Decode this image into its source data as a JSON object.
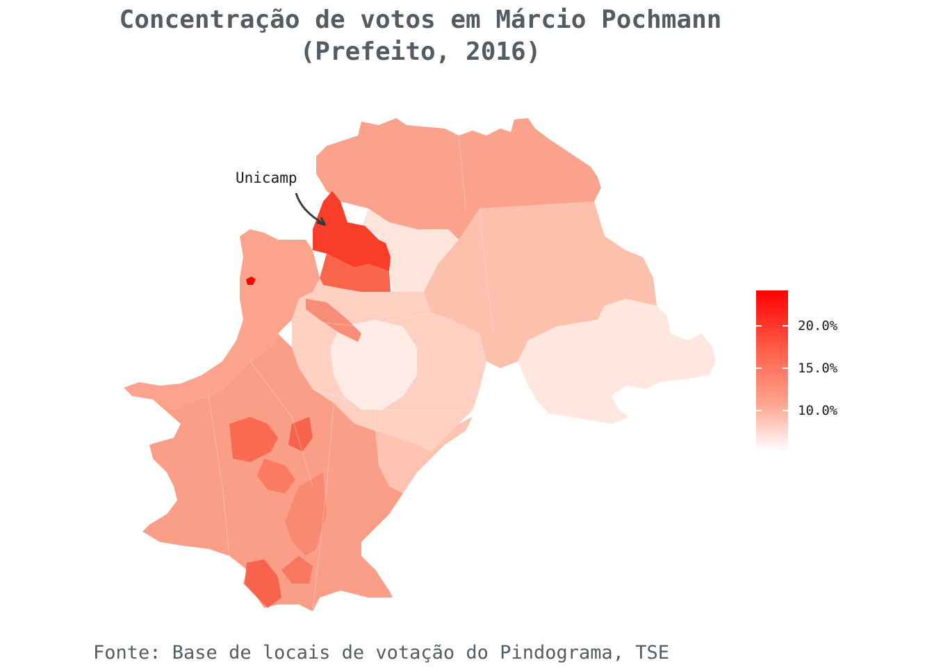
{
  "title": {
    "line1": "Concentração de votos em Márcio Pochmann",
    "line2": "(Prefeito, 2016)"
  },
  "annotation": {
    "label": "Unicamp"
  },
  "legend": {
    "ticks": [
      "20.0%",
      "15.0%",
      "10.0%"
    ],
    "tick_values": [
      20,
      15,
      10
    ],
    "range": [
      6,
      24
    ],
    "color_high": "#ff0000",
    "color_low": "#ffffff"
  },
  "source": "Fonte: Base de locais de votação do Pindograma, TSE",
  "colors": {
    "title_text": "#545c63",
    "highest": "#ff0000"
  }
}
